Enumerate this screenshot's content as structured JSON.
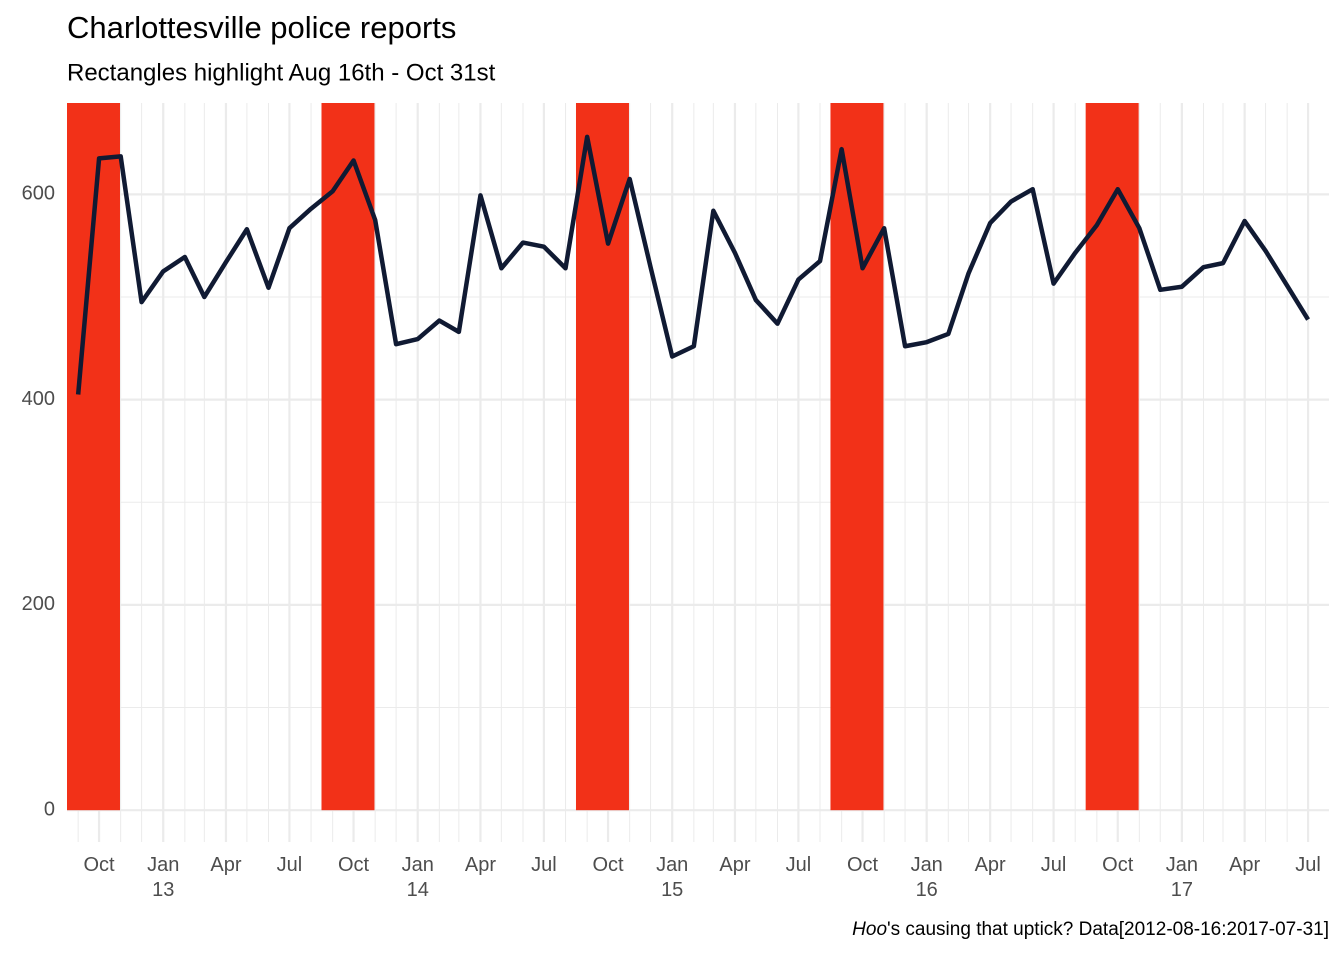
{
  "chart_data": {
    "type": "line",
    "title": "Charlottesville police reports",
    "subtitle": "Rectangles highlight Aug 16th - Oct 31st",
    "caption_italic": "Hoo",
    "caption": "'s causing that uptick? Data[2012-08-16:2017-07-31]",
    "x": [
      "2012-09",
      "2012-10",
      "2012-11",
      "2012-12",
      "2013-01",
      "2013-02",
      "2013-03",
      "2013-04",
      "2013-05",
      "2013-06",
      "2013-07",
      "2013-08",
      "2013-09",
      "2013-10",
      "2013-11",
      "2013-12",
      "2014-01",
      "2014-02",
      "2014-03",
      "2014-04",
      "2014-05",
      "2014-06",
      "2014-07",
      "2014-08",
      "2014-09",
      "2014-10",
      "2014-11",
      "2014-12",
      "2015-01",
      "2015-02",
      "2015-03",
      "2015-04",
      "2015-05",
      "2015-06",
      "2015-07",
      "2015-08",
      "2015-09",
      "2015-10",
      "2015-11",
      "2015-12",
      "2016-01",
      "2016-02",
      "2016-03",
      "2016-04",
      "2016-05",
      "2016-06",
      "2016-07",
      "2016-08",
      "2016-09",
      "2016-10",
      "2016-11",
      "2016-12",
      "2017-01",
      "2017-02",
      "2017-03",
      "2017-04",
      "2017-05",
      "2017-06",
      "2017-07"
    ],
    "values": [
      405,
      635,
      637,
      495,
      525,
      539,
      500,
      534,
      566,
      509,
      567,
      586,
      603,
      633,
      575,
      454,
      459,
      477,
      466,
      599,
      528,
      553,
      549,
      528,
      656,
      552,
      615,
      529,
      442,
      452,
      584,
      543,
      497,
      474,
      517,
      535,
      644,
      528,
      567,
      452,
      456,
      464,
      523,
      572,
      593,
      605,
      513,
      543,
      570,
      605,
      567,
      507,
      510,
      529,
      533,
      574,
      545,
      511,
      478
    ],
    "color": "#101a33",
    "highlight_color": "#f23118",
    "highlights": [
      {
        "start": "2012-08-16",
        "end": "2012-10-31"
      },
      {
        "start": "2013-08-16",
        "end": "2013-10-31"
      },
      {
        "start": "2014-08-16",
        "end": "2014-10-31"
      },
      {
        "start": "2015-08-16",
        "end": "2015-10-31"
      },
      {
        "start": "2016-08-16",
        "end": "2016-10-31"
      }
    ],
    "xlim": [
      "2012-08-16",
      "2017-07-31"
    ],
    "xticks": [
      {
        "value": "2012-10",
        "label": "Oct"
      },
      {
        "value": "2013-01",
        "label": "Jan\n13"
      },
      {
        "value": "2013-04",
        "label": "Apr"
      },
      {
        "value": "2013-07",
        "label": "Jul"
      },
      {
        "value": "2013-10",
        "label": "Oct"
      },
      {
        "value": "2014-01",
        "label": "Jan\n14"
      },
      {
        "value": "2014-04",
        "label": "Apr"
      },
      {
        "value": "2014-07",
        "label": "Jul"
      },
      {
        "value": "2014-10",
        "label": "Oct"
      },
      {
        "value": "2015-01",
        "label": "Jan\n15"
      },
      {
        "value": "2015-04",
        "label": "Apr"
      },
      {
        "value": "2015-07",
        "label": "Jul"
      },
      {
        "value": "2015-10",
        "label": "Oct"
      },
      {
        "value": "2016-01",
        "label": "Jan\n16"
      },
      {
        "value": "2016-04",
        "label": "Apr"
      },
      {
        "value": "2016-07",
        "label": "Jul"
      },
      {
        "value": "2016-10",
        "label": "Oct"
      },
      {
        "value": "2017-01",
        "label": "Jan\n17"
      },
      {
        "value": "2017-04",
        "label": "Apr"
      },
      {
        "value": "2017-07",
        "label": "Jul"
      }
    ],
    "ylim": [
      -31,
      689
    ],
    "yticks": [
      0,
      200,
      400,
      600
    ],
    "yminorticks": [
      100,
      300,
      500
    ],
    "grid": true
  }
}
